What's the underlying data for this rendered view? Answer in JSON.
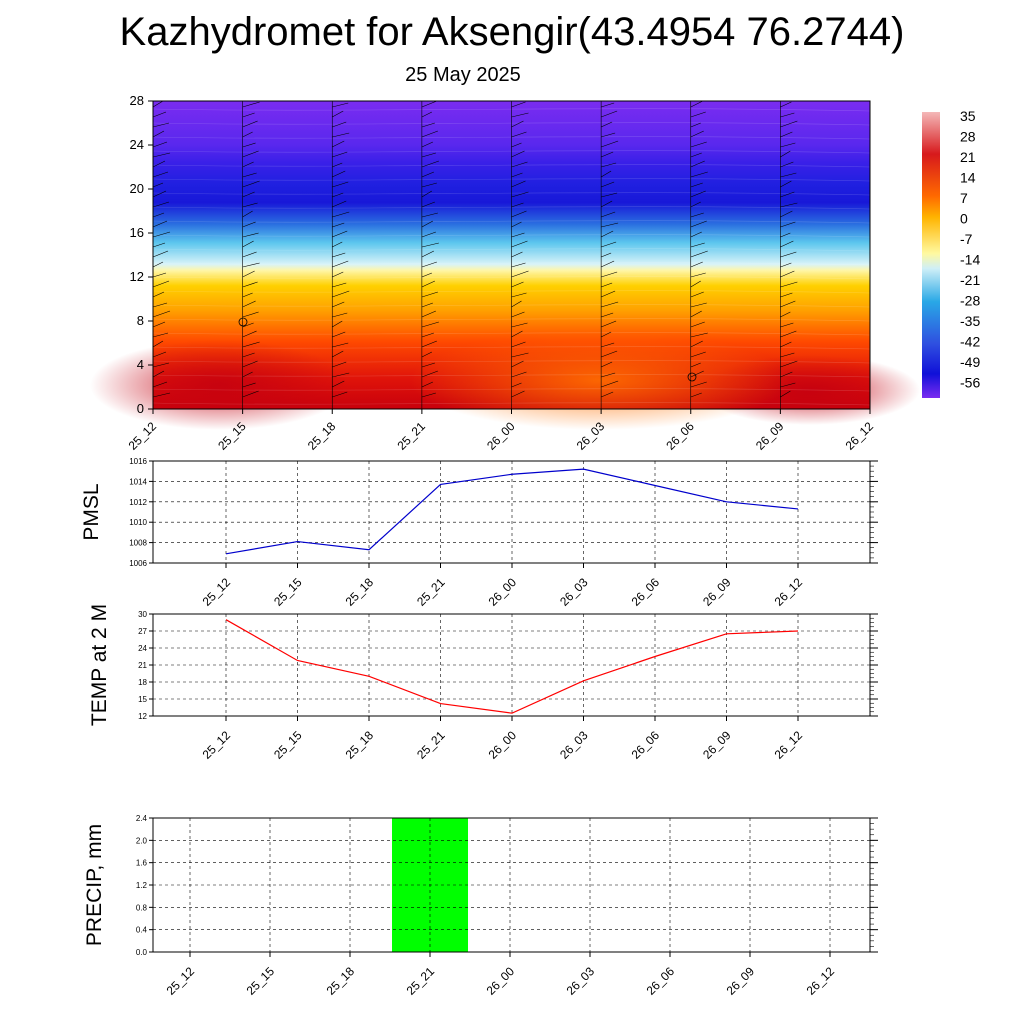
{
  "title": "Kazhydromet for Aksengir(43.4954 76.2744)",
  "subtitle": "25 May 2025",
  "chart_data": [
    {
      "type": "heatmap",
      "x_ticks": [
        "25_12",
        "25_15",
        "25_18",
        "25_21",
        "26_00",
        "26_03",
        "26_06",
        "26_09",
        "26_12"
      ],
      "y_ticks": [
        0,
        4,
        8,
        12,
        16,
        20,
        24,
        28
      ],
      "ylim": [
        0,
        28
      ],
      "colorbar_labels": [
        35,
        28,
        21,
        14,
        7,
        0,
        -7,
        -14,
        -21,
        -28,
        -35,
        -42,
        -49,
        -56
      ],
      "color_stops": [
        {
          "value": 35,
          "color": "#f4b8b8"
        },
        {
          "value": 21,
          "color": "#d7191c"
        },
        {
          "value": 7,
          "color": "#ff6a00"
        },
        {
          "value": 0,
          "color": "#ffb400"
        },
        {
          "value": -12,
          "color": "#fff9a0"
        },
        {
          "value": -17,
          "color": "#cfeff7"
        },
        {
          "value": -28,
          "color": "#29a8e6"
        },
        {
          "value": -42,
          "color": "#2f4fe0"
        },
        {
          "value": -52,
          "color": "#1010d8"
        },
        {
          "value": -60,
          "color": "#7a2cf0"
        }
      ]
    },
    {
      "type": "line",
      "ylabel": "PMSL",
      "x": [
        "25_12",
        "25_15",
        "25_18",
        "25_21",
        "26_00",
        "26_03",
        "26_06",
        "26_09",
        "26_12"
      ],
      "series": [
        {
          "values": [
            1006.9,
            1008.1,
            1007.3,
            1013.7,
            1014.7,
            1015.2,
            1013.6,
            1012.0,
            1011.3
          ],
          "color": "#0000cc"
        }
      ],
      "ylim": [
        1006,
        1016
      ],
      "y_ticks": [
        1006,
        1008,
        1010,
        1012,
        1014,
        1016
      ],
      "grid": true
    },
    {
      "type": "line",
      "ylabel": "TEMP at 2 M",
      "x": [
        "25_12",
        "25_15",
        "25_18",
        "25_21",
        "26_00",
        "26_03",
        "26_06",
        "26_09",
        "26_12"
      ],
      "series": [
        {
          "values": [
            29.0,
            21.8,
            19.0,
            14.2,
            12.5,
            18.2,
            22.5,
            26.5,
            27.0
          ],
          "color": "#ff0000"
        }
      ],
      "ylim": [
        12,
        30
      ],
      "y_ticks": [
        12,
        15,
        18,
        21,
        24,
        27,
        30
      ],
      "grid": true
    },
    {
      "type": "bar",
      "ylabel": "PRECIP, mm",
      "categories": [
        "25_12",
        "25_15",
        "25_18",
        "25_21",
        "26_00",
        "26_03",
        "26_06",
        "26_09",
        "26_12"
      ],
      "values": [
        0,
        0,
        0,
        2.4,
        0,
        0,
        0,
        0,
        0
      ],
      "bar_color": "#00ff00",
      "ylim": [
        0,
        2.4
      ],
      "y_ticks": [
        "0.0",
        "0.4",
        "0.8",
        "1.2",
        "1.6",
        "2.0",
        "2.4"
      ],
      "grid": true
    }
  ]
}
